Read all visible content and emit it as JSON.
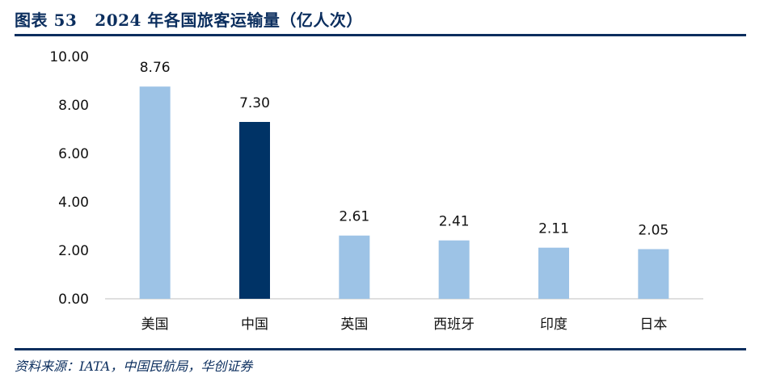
{
  "header": {
    "figure_label": "图表 53",
    "title": "2024 年各国旅客运输量（亿人次）"
  },
  "footer": {
    "source": "资料来源：IATA，中国民航局，华创证券"
  },
  "colors": {
    "bar_default": "#9dc3e6",
    "bar_highlight": "#003366",
    "rule": "#0b2e5e"
  },
  "chart_data": {
    "type": "bar",
    "categories": [
      "美国",
      "中国",
      "英国",
      "西班牙",
      "印度",
      "日本"
    ],
    "values": [
      8.76,
      7.3,
      2.61,
      2.41,
      2.11,
      2.05
    ],
    "value_labels": [
      "8.76",
      "7.30",
      "2.61",
      "2.41",
      "2.11",
      "2.05"
    ],
    "highlight": "中国",
    "ylim": [
      0,
      10
    ],
    "yticks": [
      0,
      2,
      4,
      6,
      8,
      10
    ],
    "ytick_labels": [
      "0.00",
      "2.00",
      "4.00",
      "6.00",
      "8.00",
      "10.00"
    ],
    "grid": false,
    "legend": "none"
  }
}
